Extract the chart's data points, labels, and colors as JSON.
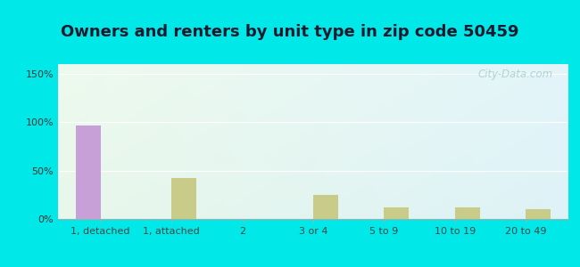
{
  "title": "Owners and renters by unit type in zip code 50459",
  "categories": [
    "1, detached",
    "1, attached",
    "2",
    "3 or 4",
    "5 to 9",
    "10 to 19",
    "20 to 49"
  ],
  "owner_values": [
    97,
    0,
    0,
    0,
    0,
    0,
    0
  ],
  "renter_values": [
    0,
    42,
    0,
    25,
    12,
    12,
    10
  ],
  "owner_color": "#c8a0d8",
  "renter_color": "#c8cc88",
  "ylim": [
    0,
    160
  ],
  "yticks": [
    0,
    50,
    100,
    150
  ],
  "ytick_labels": [
    "0%",
    "50%",
    "100%",
    "150%"
  ],
  "outer_bg": "#00e8e8",
  "title_fontsize": 13,
  "bar_width": 0.35,
  "watermark": "City-Data.com"
}
